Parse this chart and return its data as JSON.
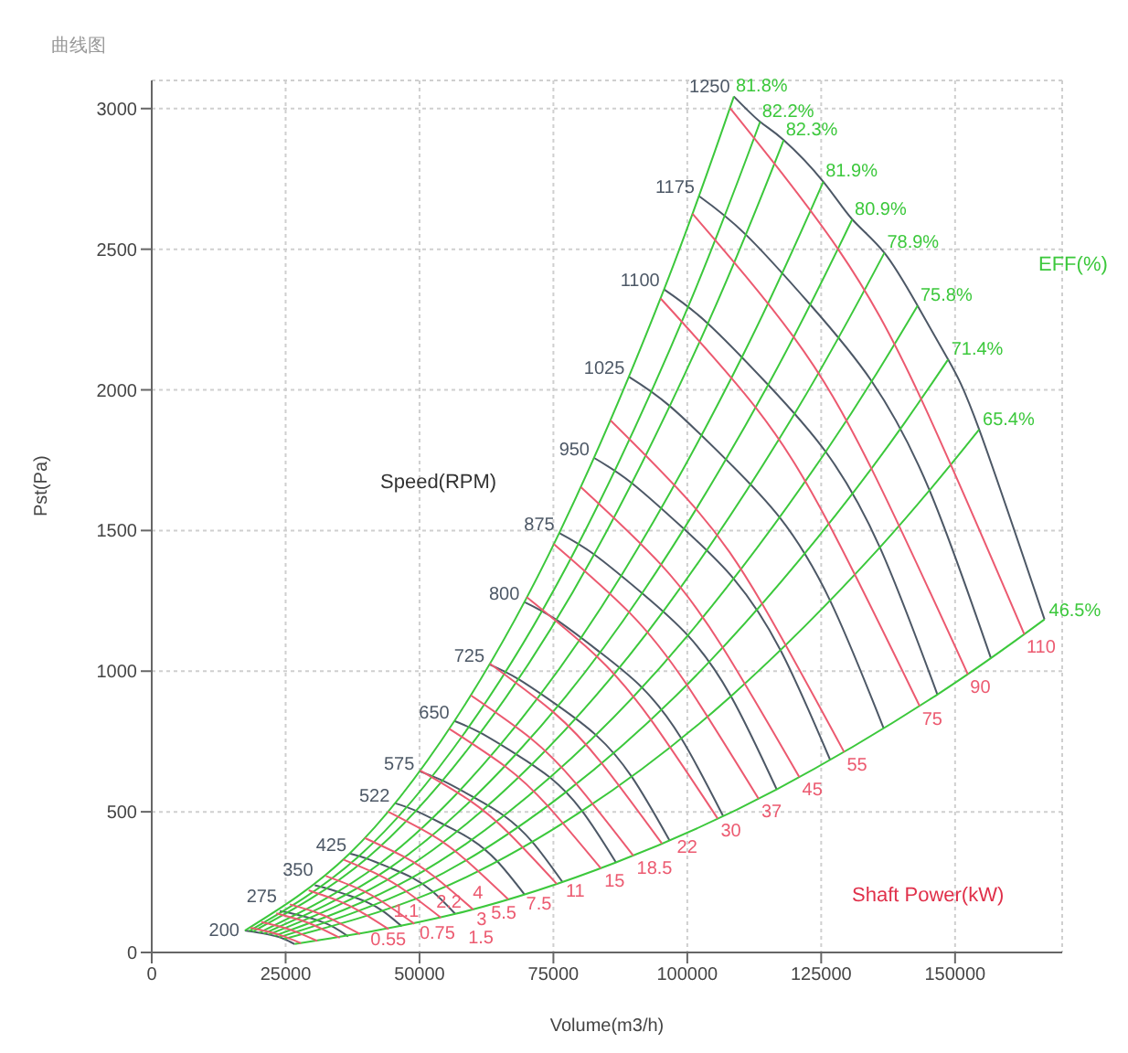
{
  "chart_data": {
    "type": "line",
    "subtitle": "曲线图",
    "xlabel": "Volume(m3/h)",
    "ylabel": "Pst(Pa)",
    "xlim": [
      0,
      170000
    ],
    "ylim": [
      0,
      3100
    ],
    "xticks": [
      0,
      25000,
      50000,
      75000,
      100000,
      125000,
      150000
    ],
    "yticks": [
      0,
      500,
      1000,
      1500,
      2000,
      2500,
      3000
    ],
    "grid": true,
    "marker": "none",
    "line_style": "solid",
    "annotations": [
      "Speed(RPM)",
      "EFF(%)",
      "Shaft Power(kW)"
    ],
    "series": [
      {
        "name": "1250",
        "color": "#4d5866",
        "x": [
          108700,
          113600,
          118000,
          125400,
          130800,
          136800,
          143000,
          148700,
          154500,
          166700
        ],
        "values": [
          3043,
          2953,
          2888,
          2740,
          2606,
          2487,
          2299,
          2108,
          1859,
          1184
        ]
      },
      {
        "name": "1175",
        "color": "#4d5866",
        "x": [
          102180,
          110920,
          122950,
          134420,
          145230,
          156700
        ],
        "values": [
          2689,
          2552,
          2303,
          2031,
          1643,
          1046
        ]
      },
      {
        "name": "1100",
        "color": "#4d5866",
        "x": [
          95660,
          103840,
          115100,
          125840,
          135960,
          146700
        ],
        "values": [
          2357,
          2236,
          2018,
          1780,
          1440,
          917
        ]
      },
      {
        "name": "1025",
        "color": "#4d5866",
        "x": [
          89130,
          96760,
          107260,
          117260,
          126690,
          136690
        ],
        "values": [
          2046,
          1942,
          1752,
          1546,
          1250,
          796
        ]
      },
      {
        "name": "950",
        "color": "#4d5866",
        "x": [
          82610,
          89680,
          99410,
          108680,
          117420,
          126690
        ],
        "values": [
          1758,
          1668,
          1505,
          1328,
          1074,
          684
        ]
      },
      {
        "name": "875",
        "color": "#4d5866",
        "x": [
          76090,
          82600,
          91560,
          100100,
          108150,
          116690
        ],
        "values": [
          1491,
          1415,
          1277,
          1127,
          911,
          580
        ]
      },
      {
        "name": "800",
        "color": "#4d5866",
        "x": [
          69570,
          75520,
          83710,
          91520,
          98880,
          106690
        ],
        "values": [
          1246,
          1183,
          1067,
          942,
          761,
          485
        ]
      },
      {
        "name": "725",
        "color": "#4d5866",
        "x": [
          63050,
          68440,
          75860,
          82940,
          89610,
          96690
        ],
        "values": [
          1024,
          972,
          877,
          773,
          625,
          398
        ]
      },
      {
        "name": "650",
        "color": "#4d5866",
        "x": [
          56520,
          61360,
          68020,
          74360,
          80340,
          86680
        ],
        "values": [
          823,
          781,
          705,
          622,
          503,
          320
        ]
      },
      {
        "name": "575",
        "color": "#4d5866",
        "x": [
          50000,
          54280,
          60170,
          65780,
          71070,
          76680
        ],
        "values": [
          644,
          611,
          551,
          486,
          393,
          251
        ]
      },
      {
        "name": "522",
        "color": "#4d5866",
        "x": [
          45390,
          49280,
          54620,
          59720,
          64520,
          69610
        ],
        "values": [
          531,
          504,
          454,
          401,
          324,
          206
        ]
      },
      {
        "name": "425",
        "color": "#4d5866",
        "x": [
          36960,
          40120,
          44470,
          48620,
          52530,
          56680
        ],
        "values": [
          352,
          334,
          301,
          266,
          215,
          137
        ]
      },
      {
        "name": "350",
        "color": "#4d5866",
        "x": [
          30440,
          33040,
          36620,
          40040,
          43260,
          46680
        ],
        "values": [
          239,
          226,
          204,
          180,
          146,
          93
        ]
      },
      {
        "name": "275",
        "color": "#4d5866",
        "x": [
          23910,
          25960,
          28780,
          31460,
          33990,
          36670
        ],
        "values": [
          147,
          140,
          126,
          111,
          90,
          57
        ]
      },
      {
        "name": "200",
        "color": "#4d5866",
        "x": [
          17390,
          18880,
          20930,
          22880,
          24720,
          26670
        ],
        "values": [
          78,
          74,
          67,
          59,
          48,
          30
        ]
      },
      {
        "name": "81.8%",
        "color": "#3cc83c",
        "x": [
          108700,
          95660,
          76090,
          56520,
          36960,
          17390
        ],
        "values": [
          3043,
          2357,
          1491,
          823,
          352,
          78
        ]
      },
      {
        "name": "82.2%",
        "color": "#3cc83c",
        "x": [
          113600,
          99970,
          79520,
          59070,
          38620,
          18180
        ],
        "values": [
          2953,
          2287,
          1447,
          798,
          341,
          76
        ]
      },
      {
        "name": "82.3%",
        "color": "#3cc83c",
        "x": [
          118000,
          103840,
          82600,
          61360,
          40120,
          18880
        ],
        "values": [
          2888,
          2236,
          1415,
          781,
          334,
          74
        ]
      },
      {
        "name": "81.9%",
        "color": "#3cc83c",
        "x": [
          125400,
          110350,
          87780,
          65210,
          42640,
          20060
        ],
        "values": [
          2740,
          2122,
          1343,
          741,
          317,
          70
        ]
      },
      {
        "name": "80.9%",
        "color": "#3cc83c",
        "x": [
          130800,
          115100,
          91560,
          68020,
          44470,
          20930
        ],
        "values": [
          2606,
          2018,
          1277,
          705,
          301,
          67
        ]
      },
      {
        "name": "78.9%",
        "color": "#3cc83c",
        "x": [
          136800,
          120380,
          95760,
          71140,
          46510,
          21890
        ],
        "values": [
          2487,
          1926,
          1219,
          672,
          287,
          64
        ]
      },
      {
        "name": "75.8%",
        "color": "#3cc83c",
        "x": [
          143000,
          125840,
          100100,
          74360,
          48620,
          22880
        ],
        "values": [
          2299,
          1780,
          1127,
          622,
          266,
          59
        ]
      },
      {
        "name": "71.4%",
        "color": "#3cc83c",
        "x": [
          148700,
          130860,
          104090,
          77320,
          50560,
          23790
        ],
        "values": [
          2108,
          1632,
          1033,
          570,
          244,
          54
        ]
      },
      {
        "name": "65.4%",
        "color": "#3cc83c",
        "x": [
          154500,
          135960,
          108150,
          80340,
          52530,
          24720
        ],
        "values": [
          1859,
          1440,
          911,
          503,
          215,
          48
        ]
      },
      {
        "name": "46.5%",
        "color": "#3cc83c",
        "x": [
          166700,
          146700,
          116690,
          86680,
          56680,
          26670
        ],
        "values": [
          1184,
          917,
          580,
          320,
          137,
          30
        ]
      },
      {
        "name": "0.55",
        "color": "#ec5a70",
        "x": [
          27860,
          24560,
          21910,
          18460
        ],
        "values": [
          33,
          58,
          73,
          88
        ]
      },
      {
        "name": "0.75",
        "color": "#ec5a70",
        "x": [
          30900,
          27240,
          24300,
          20480
        ],
        "values": [
          41,
          71,
          90,
          108
        ]
      },
      {
        "name": "1.1",
        "color": "#ec5a70",
        "x": [
          35110,
          30950,
          27610,
          23260
        ],
        "values": [
          52,
          91,
          116,
          139
        ]
      },
      {
        "name": "1.5",
        "color": "#ec5a70",
        "x": [
          38910,
          34310,
          30610,
          25790
        ],
        "values": [
          65,
          112,
          143,
          171
        ]
      },
      {
        "name": "2.2",
        "color": "#ec5a70",
        "x": [
          44220,
          38990,
          34780,
          29300
        ],
        "values": [
          83,
          145,
          184,
          221
        ]
      },
      {
        "name": "3",
        "color": "#ec5a70",
        "x": [
          49040,
          43240,
          38570,
          32500
        ],
        "values": [
          102,
          178,
          227,
          272
        ]
      },
      {
        "name": "4",
        "color": "#ec5a70",
        "x": [
          53980,
          47600,
          42460,
          35770
        ],
        "values": [
          124,
          216,
          275,
          330
        ]
      },
      {
        "name": "5.5",
        "color": "#ec5a70",
        "x": [
          60020,
          52920,
          47210,
          39770
        ],
        "values": [
          153,
          267,
          339,
          407
        ]
      },
      {
        "name": "7.5",
        "color": "#ec5a70",
        "x": [
          66550,
          58680,
          52350,
          44100
        ],
        "values": [
          189,
          328,
          417,
          501
        ]
      },
      {
        "name": "11",
        "color": "#ec5a70",
        "x": [
          75620,
          66670,
          59470,
          50110
        ],
        "values": [
          244,
          424,
          539,
          647
        ]
      },
      {
        "name": "15",
        "color": "#ec5a70",
        "x": [
          83850,
          73930,
          65950,
          55560
        ],
        "values": [
          299,
          521,
          662,
          795
        ]
      },
      {
        "name": "18.5",
        "color": "#ec5a70",
        "x": [
          89920,
          79280,
          70720,
          59590
        ],
        "values": [
          344,
          599,
          762,
          914
        ]
      },
      {
        "name": "22",
        "color": "#ec5a70",
        "x": [
          95270,
          84000,
          74940,
          63130
        ],
        "values": [
          387,
          673,
          855,
          1027
        ]
      },
      {
        "name": "30",
        "color": "#ec5a70",
        "x": [
          105670,
          93170,
          83110,
          70020
        ],
        "values": [
          476,
          828,
          1052,
          1263
        ]
      },
      {
        "name": "37",
        "color": "#ec5a70",
        "x": [
          113300,
          99900,
          89110,
          75080
        ],
        "values": [
          547,
          952,
          1210,
          1452
        ]
      },
      {
        "name": "45",
        "color": "#ec5a70",
        "x": [
          120930,
          106630,
          95120,
          80140
        ],
        "values": [
          623,
          1084,
          1378,
          1654
        ]
      },
      {
        "name": "55",
        "color": "#ec5a70",
        "x": [
          129300,
          114000,
          101700,
          85680
        ],
        "values": [
          712,
          1239,
          1575,
          1891
        ]
      },
      {
        "name": "75",
        "color": "#ec5a70",
        "x": [
          143380,
          126420,
          112780,
          95010
        ],
        "values": [
          876,
          1524,
          1937,
          2325
        ]
      },
      {
        "name": "90",
        "color": "#ec5a70",
        "x": [
          152380,
          134360,
          119850,
          100980
        ],
        "values": [
          989,
          1721,
          2188,
          2626
        ]
      },
      {
        "name": "110",
        "color": "#ec5a70",
        "x": [
          162930,
          143650,
          128140,
          107960
        ],
        "values": [
          1131,
          1968,
          2501,
          3002
        ]
      }
    ]
  }
}
